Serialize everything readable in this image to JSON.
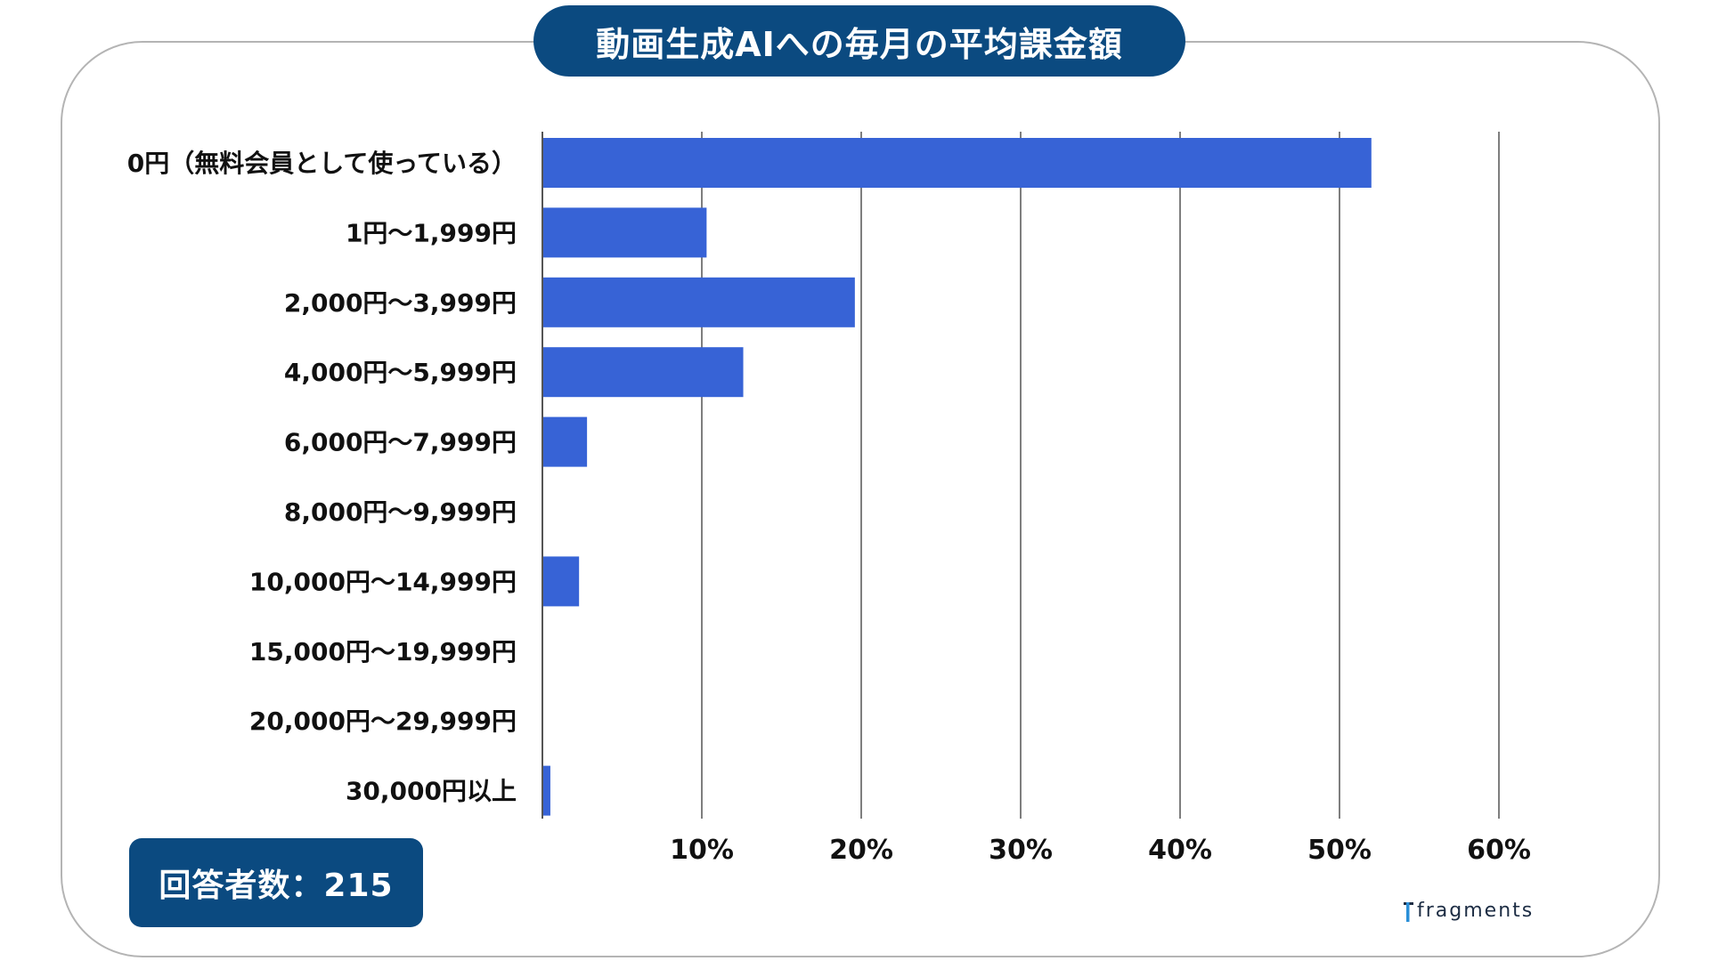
{
  "title": "動画生成AIへの毎月の平均課金額",
  "respondents_label": "回答者数：215",
  "logo_text": "fragments",
  "colors": {
    "bar": "#3763d6",
    "header": "#0b4a80",
    "grid": "#3a3a3a",
    "text": "#111111"
  },
  "chart_data": {
    "type": "bar",
    "orientation": "horizontal",
    "categories": [
      "0円（無料会員として使っている）",
      "1円〜1,999円",
      "2,000円〜3,999円",
      "4,000円〜5,999円",
      "6,000円〜7,999円",
      "8,000円〜9,999円",
      "10,000円〜14,999円",
      "15,000円〜19,999円",
      "20,000円〜29,999円",
      "30,000円以上"
    ],
    "values": [
      52.0,
      10.3,
      19.6,
      12.6,
      2.8,
      0,
      2.3,
      0,
      0,
      0.5
    ],
    "xlim": [
      0,
      60
    ],
    "xticks": [
      10,
      20,
      30,
      40,
      50,
      60
    ],
    "xtick_labels": [
      "10%",
      "20%",
      "30%",
      "40%",
      "50%",
      "60%"
    ],
    "grid": true
  }
}
